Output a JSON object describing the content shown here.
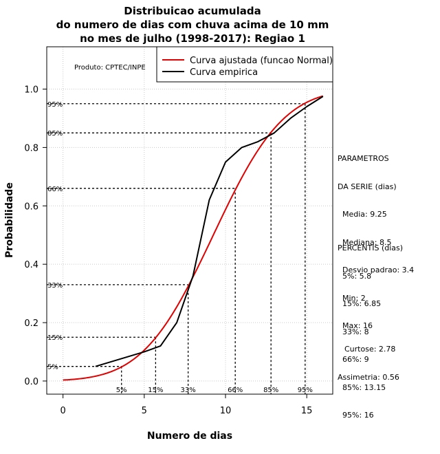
{
  "chart_data": {
    "type": "line",
    "title": [
      "Distribuicao acumulada",
      "do numero de dias com chuva acima de 10 mm",
      "no mes de julho (1998-2017): Regiao 1"
    ],
    "xlabel": "Numero de dias",
    "ylabel": "Probabilidade",
    "xlim": [
      -1,
      16.6
    ],
    "ylim": [
      -0.045,
      1.145
    ],
    "x_ticks": [
      0,
      5,
      10,
      15
    ],
    "y_ticks": [
      0.0,
      0.2,
      0.4,
      0.6,
      0.8,
      1.0
    ],
    "x_tick_labels": [
      "0",
      "5",
      "10",
      "15"
    ],
    "y_tick_labels": [
      "0.0",
      "0.2",
      "0.4",
      "0.6",
      "0.8",
      "1.0"
    ],
    "grid": true,
    "legend_position": "top-right",
    "producer_note": "Produto: CPTEC/INPE",
    "series": [
      {
        "name": "Curva ajustada (funcao Normal)",
        "color": "#e00000",
        "kind": "normal_cdf",
        "mean": 9.25,
        "sd": 3.4,
        "x_range": [
          0,
          16
        ]
      },
      {
        "name": "Curva empirica",
        "color": "#000000",
        "kind": "points",
        "x": [
          2,
          5,
          6,
          7,
          8,
          9,
          10,
          11,
          12,
          13,
          14,
          15,
          16
        ],
        "y": [
          0.05,
          0.1,
          0.12,
          0.2,
          0.36,
          0.62,
          0.75,
          0.8,
          0.82,
          0.85,
          0.9,
          0.94,
          0.975
        ]
      }
    ],
    "percentile_markers": [
      {
        "label": "5%",
        "prob": 0.05,
        "value": 3.6,
        "y_label": "5%"
      },
      {
        "label": "15%",
        "prob": 0.15,
        "value": 5.7,
        "y_label": "15%"
      },
      {
        "label": "33%",
        "prob": 0.33,
        "value": 7.7,
        "y_label": "33%"
      },
      {
        "label": "66%",
        "prob": 0.66,
        "value": 10.6,
        "y_label": "66%"
      },
      {
        "label": "85%",
        "prob": 0.85,
        "value": 12.8,
        "y_label": "85%"
      },
      {
        "label": "95%",
        "prob": 0.95,
        "value": 14.9,
        "y_label": "95%"
      }
    ]
  },
  "parametros": {
    "heading": [
      "PARAMETROS",
      "DA SERIE (dias)"
    ],
    "items": [
      "Media: 9.25",
      "Mediana: 8.5",
      "Desvio padrao: 3.4",
      "Min: 2",
      "Max: 16"
    ]
  },
  "percentis": {
    "heading": "PERCENTIS (dias)",
    "items": [
      "5%: 5.8",
      "15%: 6.85",
      "33%: 8",
      "66%: 9",
      "85%: 13.15",
      "95%: 16"
    ]
  },
  "shape": {
    "curtose": "Curtose: 2.78",
    "assimetria": "Assimetria: 0.56"
  }
}
